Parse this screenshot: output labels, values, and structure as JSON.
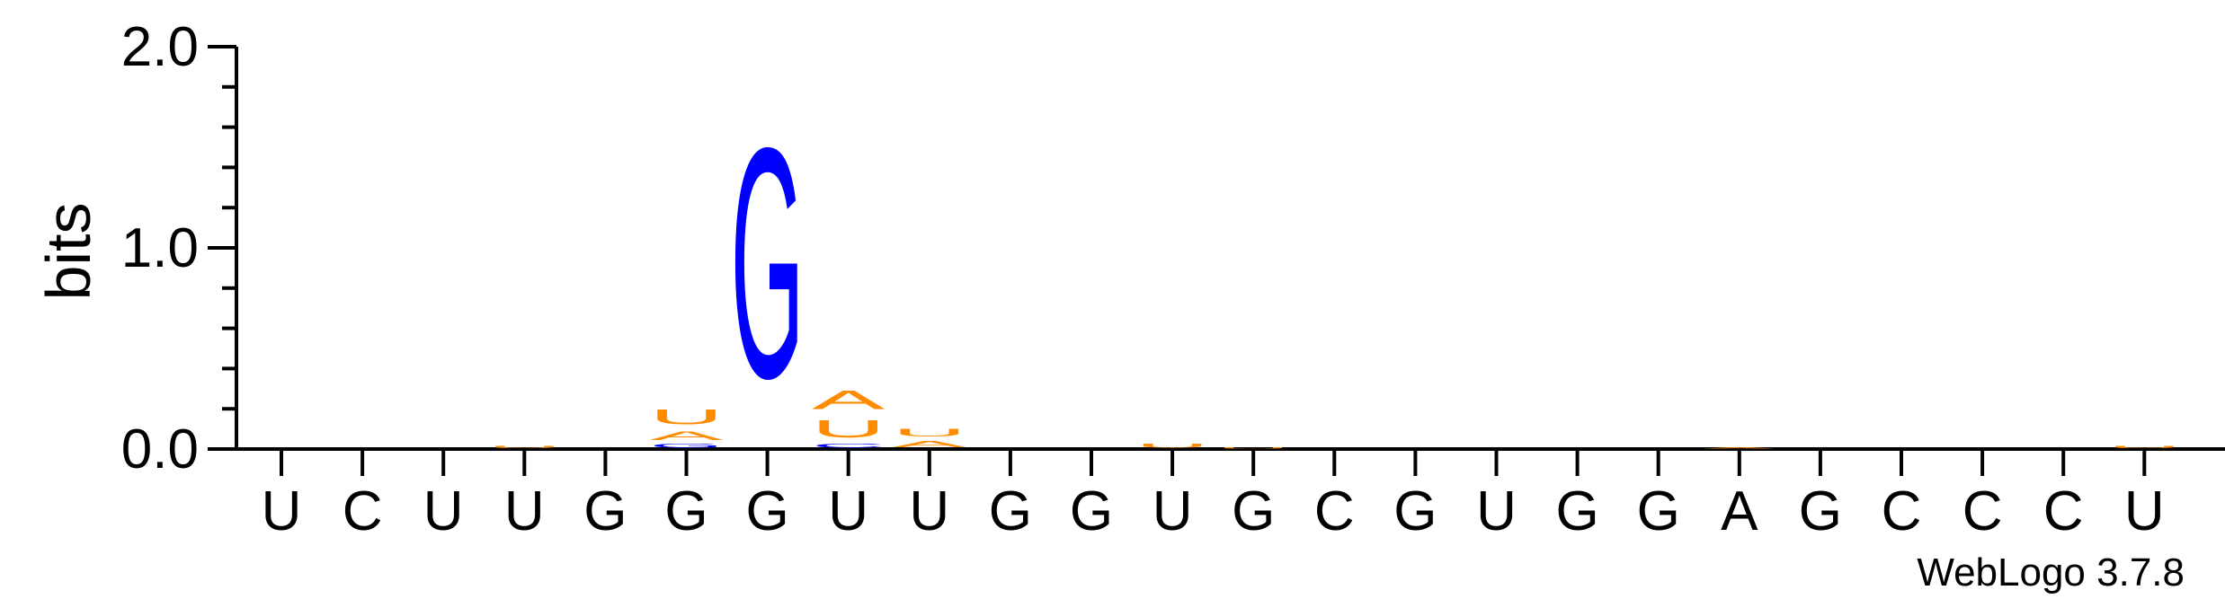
{
  "chart_data": {
    "type": "sequence-logo",
    "ylabel": "bits",
    "ylim": [
      0,
      2.0
    ],
    "yticks": [
      {
        "value": 0.0,
        "label": "0.0"
      },
      {
        "value": 1.0,
        "label": "1.0"
      },
      {
        "value": 2.0,
        "label": "2.0"
      }
    ],
    "x_labels": [
      "U",
      "C",
      "U",
      "U",
      "G",
      "G",
      "G",
      "U",
      "U",
      "G",
      "G",
      "U",
      "G",
      "C",
      "G",
      "U",
      "G",
      "G",
      "A",
      "G",
      "C",
      "C",
      "C",
      "U"
    ],
    "colors": {
      "A": "#ff8c00",
      "U": "#ff8c00",
      "G": "#0000ff",
      "C": "#0000ff"
    },
    "positions": [
      {
        "stack": []
      },
      {
        "stack": []
      },
      {
        "stack": []
      },
      {
        "stack": [
          {
            "letter": "U",
            "bits": 0.02
          }
        ]
      },
      {
        "stack": []
      },
      {
        "stack": [
          {
            "letter": "G",
            "bits": 0.03
          },
          {
            "letter": "A",
            "bits": 0.07
          },
          {
            "letter": "U",
            "bits": 0.12
          }
        ]
      },
      {
        "stack": [
          {
            "letter": "G",
            "bits": 1.83
          }
        ]
      },
      {
        "stack": [
          {
            "letter": "C",
            "bits": 0.03
          },
          {
            "letter": "U",
            "bits": 0.14
          },
          {
            "letter": "A",
            "bits": 0.15
          }
        ]
      },
      {
        "stack": [
          {
            "letter": "A",
            "bits": 0.05
          },
          {
            "letter": "U",
            "bits": 0.06
          }
        ]
      },
      {
        "stack": []
      },
      {
        "stack": []
      },
      {
        "stack": [
          {
            "letter": "U",
            "bits": 0.03
          }
        ]
      },
      {
        "stack": [
          {
            "letter": "U",
            "bits": 0.01
          }
        ]
      },
      {
        "stack": []
      },
      {
        "stack": []
      },
      {
        "stack": []
      },
      {
        "stack": []
      },
      {
        "stack": []
      },
      {
        "stack": [
          {
            "letter": "A",
            "bits": 0.01
          }
        ]
      },
      {
        "stack": []
      },
      {
        "stack": []
      },
      {
        "stack": []
      },
      {
        "stack": []
      },
      {
        "stack": [
          {
            "letter": "U",
            "bits": 0.02
          }
        ]
      }
    ]
  },
  "credit": "WebLogo 3.7.8"
}
